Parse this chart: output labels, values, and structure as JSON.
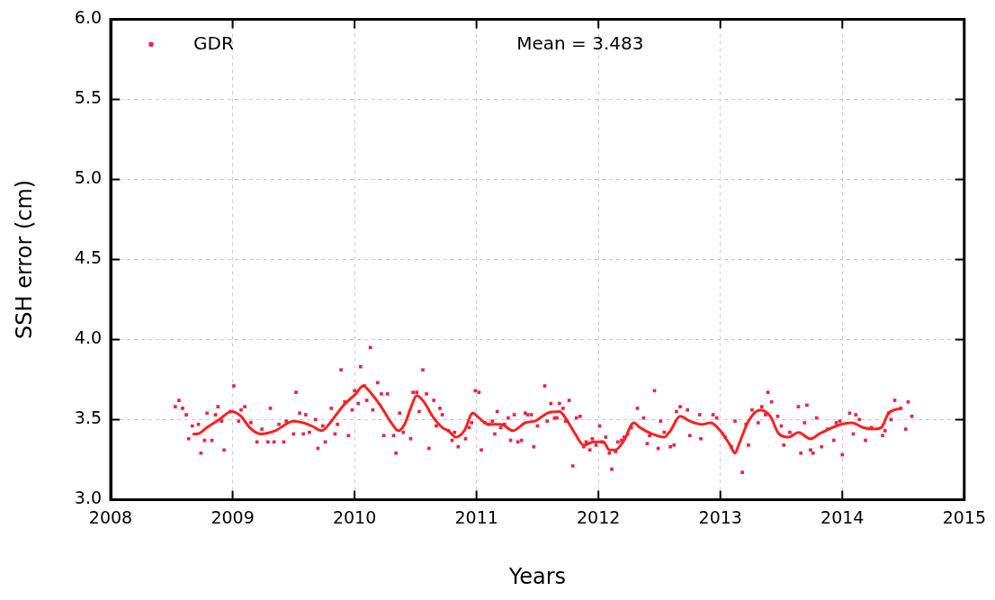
{
  "chart_data": {
    "type": "scatter",
    "xlabel": "Years",
    "ylabel": "SSH error (cm)",
    "xlim": [
      2008,
      2015
    ],
    "ylim": [
      3.0,
      6.0
    ],
    "xticks": [
      2008,
      2009,
      2010,
      2011,
      2012,
      2013,
      2014,
      2015
    ],
    "yticks": [
      {
        "value": 3.0,
        "label": "3.0"
      },
      {
        "value": 3.5,
        "label": "3.5"
      },
      {
        "value": 4.0,
        "label": "4.0"
      },
      {
        "value": 4.5,
        "label": "4.5"
      },
      {
        "value": 5.0,
        "label": "5.0"
      },
      {
        "value": 5.5,
        "label": "5.5"
      },
      {
        "value": 6.0,
        "label": "6.0"
      }
    ],
    "grid": true,
    "legend": "top left",
    "annotations": [
      "Mean = 3.483"
    ],
    "series": [
      {
        "name": "GDR",
        "marker": "square",
        "color": "#e8234f",
        "x": [
          2008.53,
          2008.56,
          2008.59,
          2008.62,
          2008.64,
          2008.67,
          2008.72,
          2008.74,
          2008.77,
          2008.79,
          2008.83,
          2008.86,
          2008.88,
          2008.91,
          2008.93,
          2008.98,
          2009.01,
          2009.05,
          2009.07,
          2009.1,
          2009.15,
          2009.2,
          2009.24,
          2009.29,
          2009.31,
          2009.34,
          2009.38,
          2009.42,
          2009.44,
          2009.5,
          2009.52,
          2009.55,
          2009.58,
          2009.6,
          2009.63,
          2009.68,
          2009.7,
          2009.74,
          2009.76,
          2009.81,
          2009.84,
          2009.86,
          2009.89,
          2009.92,
          2009.95,
          2009.98,
          2010.0,
          2010.03,
          2010.05,
          2010.08,
          2010.1,
          2010.13,
          2010.15,
          2010.19,
          2010.22,
          2010.24,
          2010.27,
          2010.32,
          2010.34,
          2010.37,
          2010.4,
          2010.46,
          2010.48,
          2010.51,
          2010.53,
          2010.56,
          2010.59,
          2010.61,
          2010.65,
          2010.67,
          2010.7,
          2010.72,
          2010.77,
          2010.8,
          2010.82,
          2010.85,
          2010.91,
          2010.94,
          2010.96,
          2010.99,
          2011.02,
          2011.04,
          2011.07,
          2011.1,
          2011.13,
          2011.15,
          2011.17,
          2011.2,
          2011.23,
          2011.26,
          2011.28,
          2011.31,
          2011.34,
          2011.37,
          2011.4,
          2011.42,
          2011.45,
          2011.47,
          2011.5,
          2011.56,
          2011.58,
          2011.61,
          2011.64,
          2011.66,
          2011.68,
          2011.71,
          2011.73,
          2011.76,
          2011.79,
          2011.82,
          2011.85,
          2011.88,
          2011.9,
          2011.93,
          2011.95,
          2011.98,
          2012.01,
          2012.03,
          2012.06,
          2012.09,
          2012.11,
          2012.14,
          2012.16,
          2012.19,
          2012.21,
          2012.24,
          2012.27,
          2012.32,
          2012.37,
          2012.4,
          2012.42,
          2012.46,
          2012.49,
          2012.51,
          2012.54,
          2012.59,
          2012.62,
          2012.64,
          2012.67,
          2012.73,
          2012.75,
          2012.83,
          2012.84,
          2012.94,
          2012.97,
          2013.02,
          2013.04,
          2013.09,
          2013.12,
          2013.18,
          2013.21,
          2013.23,
          2013.26,
          2013.31,
          2013.34,
          2013.37,
          2013.39,
          2013.42,
          2013.47,
          2013.5,
          2013.52,
          2013.57,
          2013.64,
          2013.66,
          2013.69,
          2013.71,
          2013.74,
          2013.76,
          2013.79,
          2013.83,
          2013.88,
          2013.93,
          2013.95,
          2013.98,
          2014.0,
          2014.06,
          2014.09,
          2014.11,
          2014.14,
          2014.19,
          2014.24,
          2014.33,
          2014.35,
          2014.38,
          2014.4,
          2014.43,
          2014.48,
          2014.52,
          2014.54,
          2014.57
        ],
        "values": [
          3.58,
          3.62,
          3.57,
          3.53,
          3.38,
          3.46,
          3.47,
          3.29,
          3.37,
          3.54,
          3.37,
          3.53,
          3.58,
          3.49,
          3.31,
          3.55,
          3.71,
          3.49,
          3.56,
          3.58,
          3.48,
          3.36,
          3.44,
          3.36,
          3.57,
          3.36,
          3.47,
          3.36,
          3.49,
          3.41,
          3.67,
          3.54,
          3.41,
          3.53,
          3.42,
          3.5,
          3.32,
          3.46,
          3.36,
          3.57,
          3.41,
          3.47,
          3.81,
          3.61,
          3.4,
          3.56,
          3.68,
          3.6,
          3.83,
          3.71,
          3.62,
          3.95,
          3.56,
          3.73,
          3.66,
          3.4,
          3.66,
          3.4,
          3.29,
          3.54,
          3.42,
          3.38,
          3.67,
          3.67,
          3.55,
          3.81,
          3.66,
          3.32,
          3.62,
          3.46,
          3.57,
          3.53,
          3.43,
          3.37,
          3.42,
          3.33,
          3.38,
          3.45,
          3.48,
          3.68,
          3.67,
          3.31,
          3.48,
          3.47,
          3.49,
          3.41,
          3.55,
          3.45,
          3.47,
          3.51,
          3.37,
          3.53,
          3.36,
          3.37,
          3.54,
          3.53,
          3.53,
          3.33,
          3.46,
          3.71,
          3.49,
          3.6,
          3.51,
          3.51,
          3.6,
          3.57,
          3.49,
          3.62,
          3.21,
          3.51,
          3.52,
          3.33,
          3.36,
          3.31,
          3.38,
          3.34,
          3.46,
          3.36,
          3.39,
          3.29,
          3.19,
          3.3,
          3.36,
          3.37,
          3.39,
          3.41,
          3.45,
          3.57,
          3.51,
          3.35,
          3.4,
          3.68,
          3.32,
          3.49,
          3.42,
          3.33,
          3.34,
          3.55,
          3.58,
          3.56,
          3.4,
          3.53,
          3.38,
          3.53,
          3.51,
          3.41,
          3.39,
          3.33,
          3.49,
          3.17,
          3.47,
          3.34,
          3.56,
          3.48,
          3.58,
          3.53,
          3.67,
          3.61,
          3.52,
          3.46,
          3.34,
          3.42,
          3.58,
          3.29,
          3.48,
          3.59,
          3.31,
          3.29,
          3.51,
          3.33,
          3.44,
          3.37,
          3.48,
          3.49,
          3.28,
          3.54,
          3.41,
          3.53,
          3.5,
          3.37,
          3.45,
          3.4,
          3.43,
          3.54,
          3.5,
          3.62,
          3.57,
          3.44,
          3.61,
          3.52
        ]
      },
      {
        "type": "line",
        "marker": "none",
        "color": "#ff1f1f",
        "x": [
          2008.68,
          2008.71,
          2008.79,
          2008.89,
          2008.99,
          2009.07,
          2009.14,
          2009.23,
          2009.35,
          2009.5,
          2009.58,
          2009.65,
          2009.73,
          2009.8,
          2009.91,
          2010.01,
          2010.07,
          2010.13,
          2010.21,
          2010.31,
          2010.36,
          2010.41,
          2010.46,
          2010.51,
          2010.57,
          2010.64,
          2010.72,
          2010.77,
          2010.83,
          2010.9,
          2010.97,
          2011.02,
          2011.1,
          2011.2,
          2011.3,
          2011.4,
          2011.48,
          2011.58,
          2011.68,
          2011.73,
          2011.81,
          2011.88,
          2011.96,
          2012.04,
          2012.09,
          2012.14,
          2012.21,
          2012.29,
          2012.34,
          2012.44,
          2012.54,
          2012.59,
          2012.67,
          2012.75,
          2012.85,
          2012.92,
          2013.0,
          2013.08,
          2013.12,
          2013.15,
          2013.23,
          2013.33,
          2013.41,
          2013.48,
          2013.56,
          2013.64,
          2013.74,
          2013.81,
          2013.89,
          2013.99,
          2014.08,
          2014.17,
          2014.27,
          2014.32,
          2014.38,
          2014.48
        ],
        "values": [
          3.41,
          3.41,
          3.45,
          3.5,
          3.55,
          3.52,
          3.45,
          3.41,
          3.43,
          3.49,
          3.48,
          3.46,
          3.43,
          3.48,
          3.59,
          3.66,
          3.71,
          3.67,
          3.59,
          3.47,
          3.43,
          3.47,
          3.57,
          3.65,
          3.61,
          3.52,
          3.45,
          3.43,
          3.39,
          3.43,
          3.54,
          3.51,
          3.47,
          3.47,
          3.43,
          3.48,
          3.49,
          3.54,
          3.55,
          3.51,
          3.41,
          3.34,
          3.36,
          3.36,
          3.31,
          3.31,
          3.37,
          3.48,
          3.45,
          3.41,
          3.39,
          3.43,
          3.52,
          3.49,
          3.47,
          3.48,
          3.43,
          3.34,
          3.29,
          3.34,
          3.49,
          3.56,
          3.52,
          3.41,
          3.39,
          3.42,
          3.38,
          3.41,
          3.44,
          3.47,
          3.48,
          3.45,
          3.44,
          3.45,
          3.54,
          3.57
        ]
      }
    ]
  }
}
